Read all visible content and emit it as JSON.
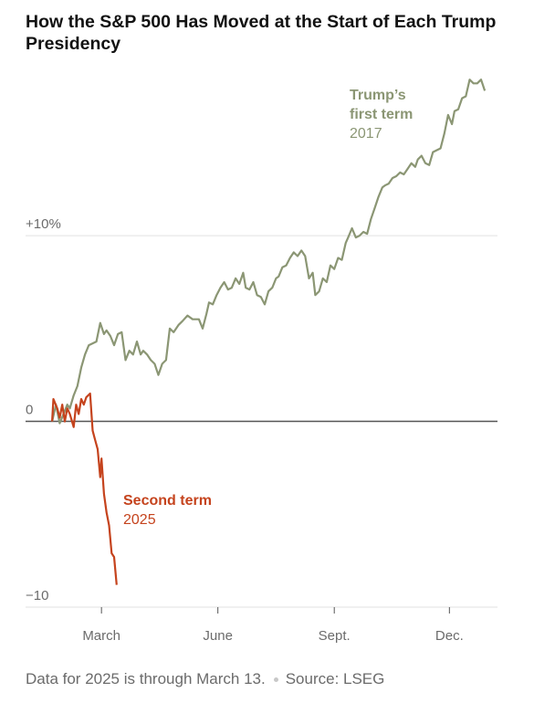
{
  "chart_data": {
    "type": "line",
    "title": "How the S&P 500 Has Moved at the Start of Each Trump Presidency",
    "note": "Data for 2025 is through March 13.",
    "source": "Source: LSEG",
    "xlim": [
      0,
      373
    ],
    "xticks": [
      {
        "value": 60,
        "label": "March"
      },
      {
        "value": 152,
        "label": "June"
      },
      {
        "value": 244,
        "label": "Sept."
      },
      {
        "value": 335,
        "label": "Dec."
      }
    ],
    "ylim": [
      -10,
      19
    ],
    "yticks": [
      {
        "value": -10,
        "label": "−10"
      },
      0,
      {
        "value": 10,
        "label": "+10%"
      }
    ],
    "grid": true,
    "series": [
      {
        "name": "Trump’s first term",
        "year": "2017",
        "color": "#8b9674",
        "x": [
          21,
          24,
          27,
          30,
          33,
          35,
          38,
          41,
          44,
          47,
          50,
          53,
          56,
          59,
          62,
          64,
          67,
          70,
          73,
          76,
          79,
          82,
          85,
          88,
          91,
          93,
          96,
          99,
          102,
          105,
          108,
          111,
          114,
          117,
          121,
          124,
          128,
          132,
          137,
          140,
          143,
          145,
          148,
          151,
          154,
          157,
          160,
          163,
          166,
          169,
          172,
          174,
          177,
          180,
          183,
          186,
          189,
          192,
          195,
          198,
          200,
          203,
          206,
          209,
          212,
          215,
          218,
          221,
          224,
          227,
          229,
          232,
          235,
          238,
          241,
          244,
          247,
          250,
          253,
          255,
          258,
          261,
          264,
          267,
          270,
          273,
          276,
          279,
          282,
          284,
          287,
          290,
          293,
          296,
          299,
          302,
          305,
          308,
          310,
          313,
          316,
          319,
          322,
          325,
          328,
          331,
          334,
          337,
          339,
          342,
          345,
          348,
          351,
          354,
          357,
          360,
          363
        ],
        "values": [
          0,
          0.9,
          -0.1,
          0.4,
          0.9,
          0.7,
          1.4,
          1.9,
          2.9,
          3.6,
          4.1,
          4.2,
          4.3,
          5.3,
          4.7,
          4.9,
          4.6,
          4.1,
          4.7,
          4.8,
          3.3,
          3.8,
          3.6,
          4.3,
          3.6,
          3.8,
          3.6,
          3.3,
          3.1,
          2.5,
          3.1,
          3.3,
          5.0,
          4.8,
          5.2,
          5.4,
          5.7,
          5.5,
          5.5,
          5.0,
          5.8,
          6.4,
          6.3,
          6.8,
          7.2,
          7.5,
          7.1,
          7.2,
          7.7,
          7.4,
          8.0,
          7.2,
          7.1,
          7.5,
          6.8,
          6.7,
          6.3,
          7.0,
          7.2,
          7.7,
          7.8,
          8.3,
          8.4,
          8.8,
          9.1,
          8.9,
          9.2,
          8.9,
          7.7,
          8.0,
          6.8,
          7.0,
          7.7,
          7.5,
          8.4,
          8.2,
          8.8,
          8.7,
          9.6,
          9.9,
          10.4,
          9.9,
          10.0,
          10.2,
          10.1,
          10.9,
          11.5,
          12.1,
          12.6,
          12.7,
          12.8,
          13.1,
          13.2,
          13.4,
          13.3,
          13.6,
          13.9,
          13.7,
          14.1,
          14.3,
          13.9,
          13.8,
          14.5,
          14.6,
          14.7,
          15.5,
          16.5,
          16.0,
          16.7,
          16.8,
          17.4,
          17.5,
          18.4,
          18.2,
          18.2,
          18.4,
          17.8
        ]
      },
      {
        "name": "Second term",
        "year": "2025",
        "color": "#c5431d",
        "x": [
          21,
          22,
          25,
          27,
          29,
          31,
          33,
          35,
          38,
          40,
          42,
          44,
          46,
          48,
          51,
          53,
          55,
          57,
          59,
          60,
          62,
          64,
          66,
          68,
          70,
          72
        ],
        "values": [
          0,
          1.2,
          0.7,
          0.2,
          0.9,
          0,
          0.7,
          0.4,
          -0.3,
          0.9,
          0.4,
          1.2,
          0.9,
          1.3,
          1.5,
          -0.5,
          -1.0,
          -1.5,
          -3.0,
          -2.0,
          -3.9,
          -4.9,
          -5.6,
          -7.1,
          -7.3,
          -8.8
        ]
      }
    ]
  }
}
